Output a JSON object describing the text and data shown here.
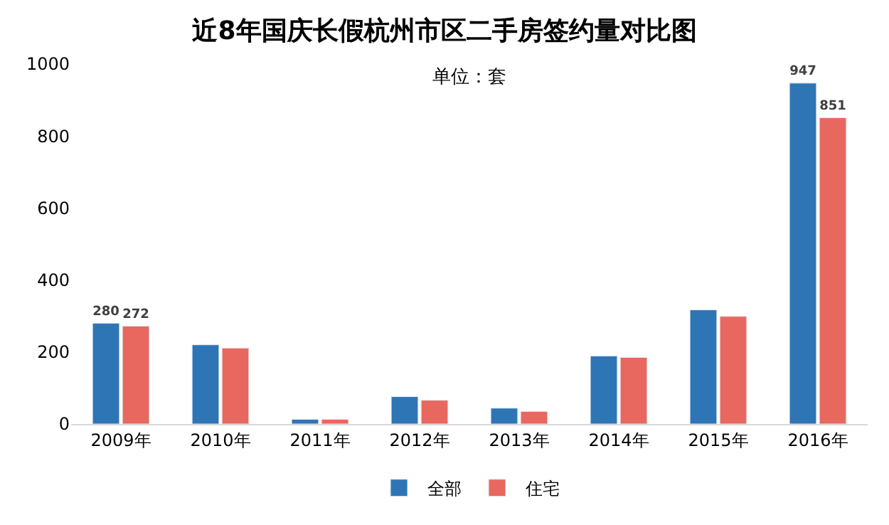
{
  "chart_data": {
    "type": "bar",
    "title": "近8年国庆长假杭州市区二手房签约量对比图",
    "annotations": [
      "单位：套"
    ],
    "categories": [
      "2009年",
      "2010年",
      "2011年",
      "2012年",
      "2013年",
      "2014年",
      "2015年",
      "2016年"
    ],
    "series": [
      {
        "name": "全部",
        "color": "#2e75b6",
        "values": [
          280,
          220,
          13,
          76,
          44,
          189,
          317,
          947
        ],
        "value_labels": [
          "280",
          null,
          null,
          null,
          null,
          null,
          null,
          "947"
        ]
      },
      {
        "name": "住宅",
        "color": "#e8685f",
        "values": [
          272,
          211,
          13,
          66,
          35,
          185,
          299,
          851
        ],
        "value_labels": [
          "272",
          null,
          null,
          null,
          null,
          null,
          null,
          "851"
        ]
      }
    ],
    "ylim": [
      0,
      1000
    ],
    "yticks": [
      0,
      200,
      400,
      600,
      800,
      1000
    ],
    "legend": "bottom"
  }
}
